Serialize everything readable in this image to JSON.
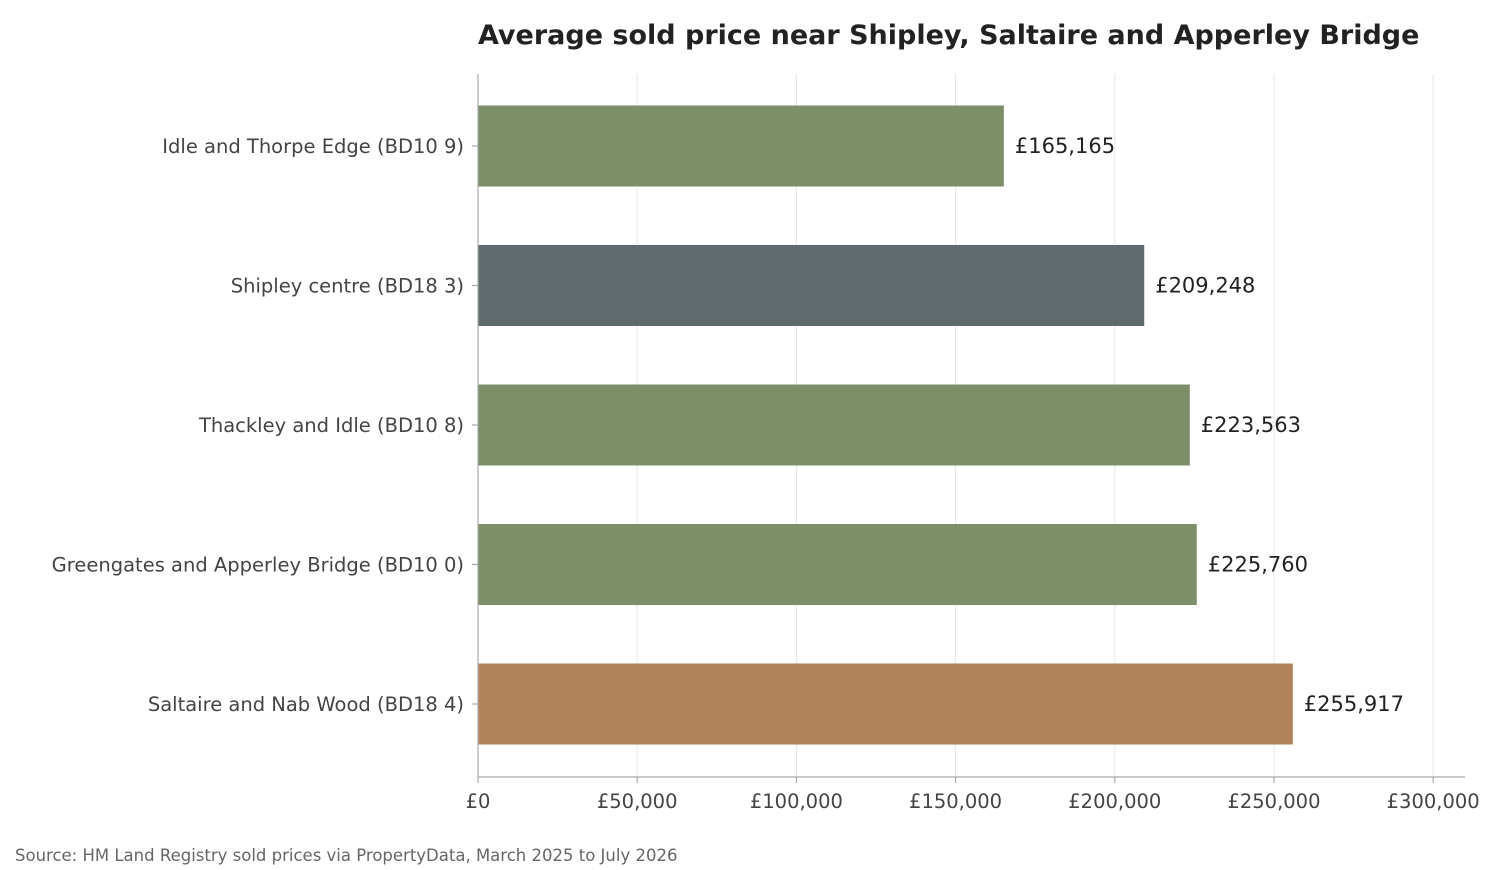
{
  "chart_data": {
    "type": "bar",
    "orientation": "horizontal",
    "title": "Average sold price near Shipley, Saltaire and Apperley Bridge",
    "xlabel": "",
    "ylabel": "",
    "xlim": [
      0,
      310000
    ],
    "grid": "vertical",
    "categories": [
      "Idle and Thorpe Edge (BD10 9)",
      "Shipley centre (BD18 3)",
      "Thackley and Idle (BD10 8)",
      "Greengates and Apperley Bridge (BD10 0)",
      "Saltaire and Nab Wood (BD18 4)"
    ],
    "values": [
      165165,
      209248,
      223563,
      225760,
      255917
    ],
    "value_labels": [
      "£165,165",
      "£209,248",
      "£223,563",
      "£225,760",
      "£255,917"
    ],
    "bar_colors": [
      "#7d8f68",
      "#5f6a6c",
      "#7d8f68",
      "#7d8f68",
      "#b28359"
    ],
    "x_ticks": [
      0,
      50000,
      100000,
      150000,
      200000,
      250000,
      300000
    ],
    "x_tick_labels": [
      "£0",
      "£50,000",
      "£100,000",
      "£150,000",
      "£200,000",
      "£250,000",
      "£300,000"
    ]
  },
  "source_note": "Source: HM Land Registry sold prices via PropertyData, March 2025 to July 2026"
}
